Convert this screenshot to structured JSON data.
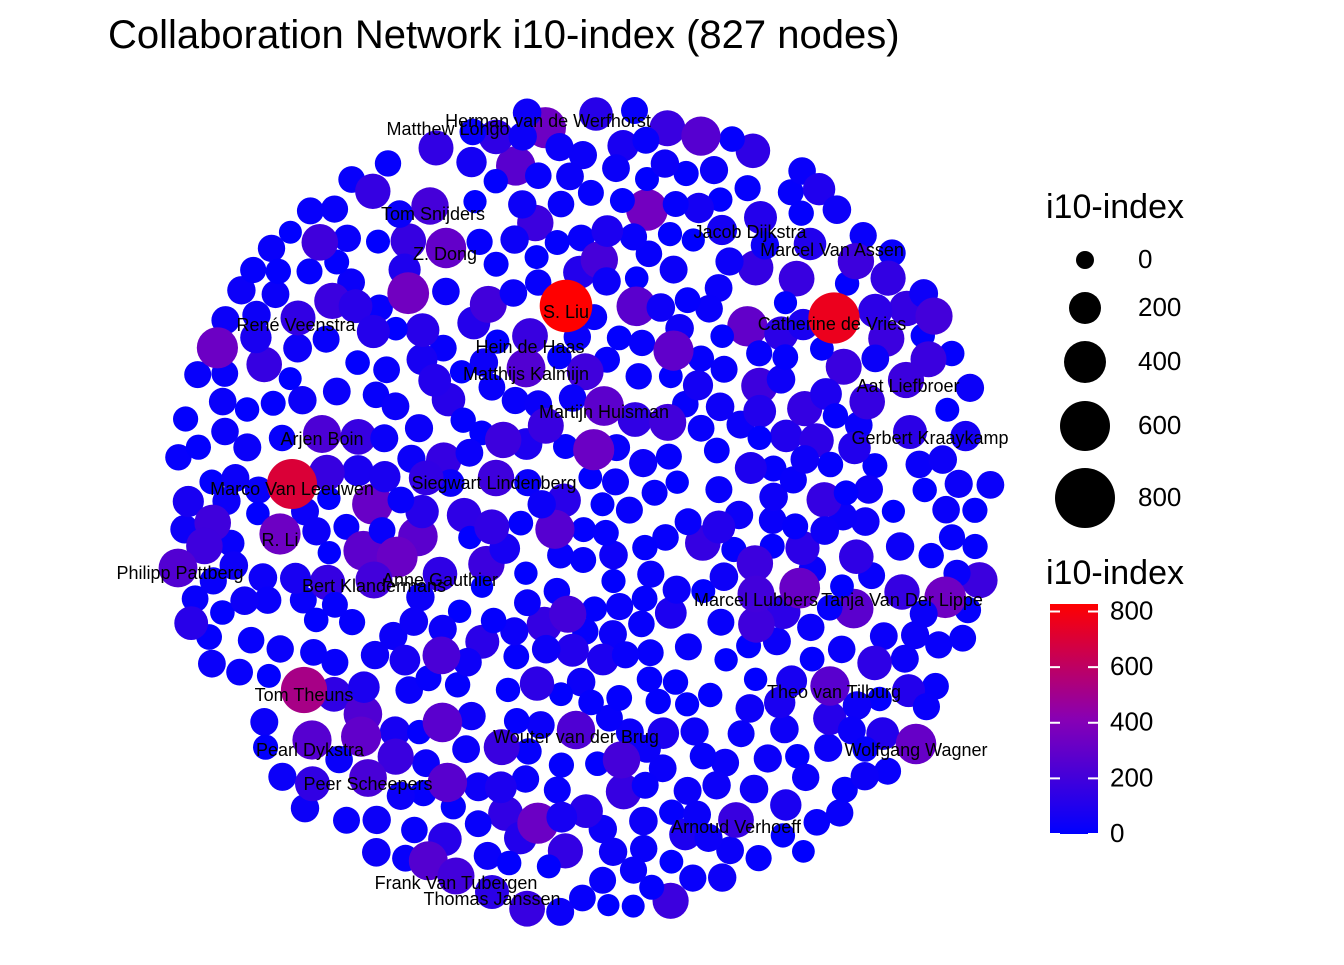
{
  "chart_data": {
    "type": "scatter",
    "title": "Collaboration Network i10-index (827 nodes)",
    "size_legend": {
      "title": "i10-index",
      "breaks": [
        "0",
        "200",
        "400",
        "600",
        "800"
      ]
    },
    "color_legend": {
      "title": "i10-index",
      "ticks": [
        "800",
        "600",
        "400",
        "200",
        "0"
      ],
      "range": [
        0,
        827
      ],
      "low_color": "#0000ff",
      "high_color": "#ff0000"
    },
    "labeled_nodes": [
      {
        "name": "Herman van de Werfhorst",
        "i10": 120
      },
      {
        "name": "Matthew Longo",
        "i10": 150
      },
      {
        "name": "Tom Snijders",
        "i10": 210
      },
      {
        "name": "Z. Dong",
        "i10": 300
      },
      {
        "name": "Jacob Dijkstra",
        "i10": 60
      },
      {
        "name": "Marcel Van Assen",
        "i10": 100
      },
      {
        "name": "S. Liu",
        "i10": 827
      },
      {
        "name": "Catherine de Vries",
        "i10": 760
      },
      {
        "name": "René Veenstra",
        "i10": 150
      },
      {
        "name": "Hein de Haas",
        "i10": 170
      },
      {
        "name": "Matthijs Kalmijn",
        "i10": 250
      },
      {
        "name": "Aat Liefbroer",
        "i10": 180
      },
      {
        "name": "Martijn Huisman",
        "i10": 280
      },
      {
        "name": "Gerbert Kraaykamp",
        "i10": 130
      },
      {
        "name": "Arjen Boin",
        "i10": 230
      },
      {
        "name": "Marco Van Leeuwen",
        "i10": 700
      },
      {
        "name": "Siegwart Lindenberg",
        "i10": 190
      },
      {
        "name": "R. Li",
        "i10": 330
      },
      {
        "name": "Philipp Pattberg",
        "i10": 250
      },
      {
        "name": "Bert Klandermans",
        "i10": 200
      },
      {
        "name": "Anne Gauthier",
        "i10": 140
      },
      {
        "name": "Marcel Lubbers",
        "i10": 200
      },
      {
        "name": "Tanja Van Der Lippe",
        "i10": 160
      },
      {
        "name": "Tom Theuns",
        "i10": 520
      },
      {
        "name": "Theo van Tilburg",
        "i10": 270
      },
      {
        "name": "Pearl Dykstra",
        "i10": 260
      },
      {
        "name": "Wouter van der Brug",
        "i10": 240
      },
      {
        "name": "Wolfgang Wagner",
        "i10": 310
      },
      {
        "name": "Peer Scheepers",
        "i10": 220
      },
      {
        "name": "Arnoud Verhoeff",
        "i10": 170
      },
      {
        "name": "Frank Van Tubergen",
        "i10": 200
      },
      {
        "name": "Thomas Janssen",
        "i10": 130
      }
    ]
  }
}
